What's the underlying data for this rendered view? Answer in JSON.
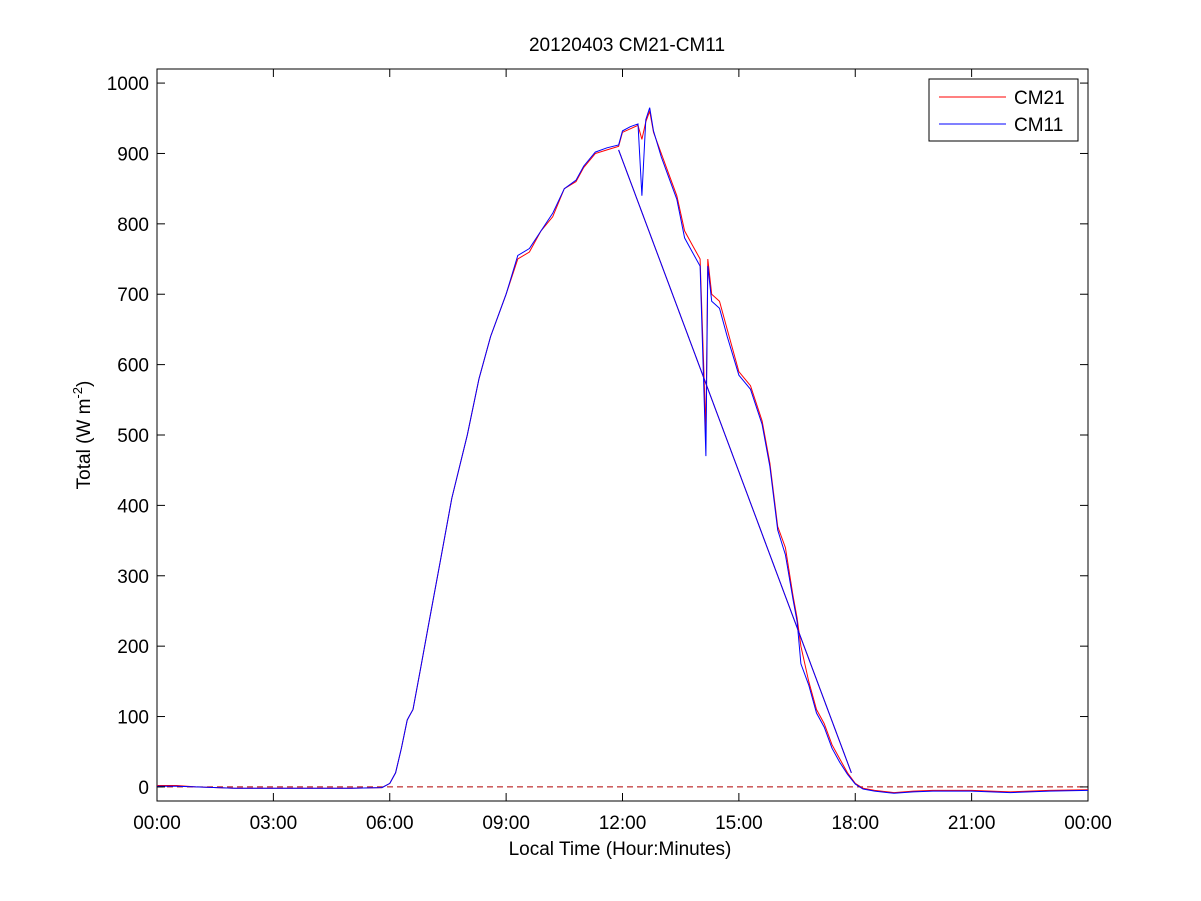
{
  "chart_data": {
    "type": "line",
    "title": "20120403 CM21-CM11",
    "xlabel": "Local Time (Hour:Minutes)",
    "ylabel": "Total (W m^-2)",
    "ylabel_parts": {
      "main": "Total (W m",
      "sup": "-2",
      "close": ")"
    },
    "xlim": [
      0,
      24
    ],
    "ylim": [
      -20,
      1020
    ],
    "x_ticks": [
      0,
      3,
      6,
      9,
      12,
      15,
      18,
      21,
      24
    ],
    "x_tick_labels": [
      "00:00",
      "03:00",
      "06:00",
      "09:00",
      "12:00",
      "15:00",
      "18:00",
      "21:00",
      "00:00"
    ],
    "y_ticks": [
      0,
      100,
      200,
      300,
      400,
      500,
      600,
      700,
      800,
      900,
      1000
    ],
    "y_tick_labels": [
      "0",
      "100",
      "200",
      "300",
      "400",
      "500",
      "600",
      "700",
      "800",
      "900",
      "1000"
    ],
    "grid": false,
    "legend_position": "top-right",
    "reference_line": {
      "y": 0,
      "style": "dashed",
      "color": "#b00000"
    },
    "series": [
      {
        "name": "CM21",
        "color": "#ff0000",
        "x": [
          0,
          0.5,
          1,
          2,
          3,
          4,
          5,
          5.8,
          6,
          6.15,
          6.3,
          6.45,
          6.5,
          6.6,
          6.8,
          7,
          7.3,
          7.6,
          8,
          8.3,
          8.6,
          9,
          9.3,
          9.6,
          9.9,
          10.2,
          10.5,
          10.8,
          11,
          11.3,
          11.6,
          11.9,
          12,
          12.2,
          12.4,
          12.5,
          12.6,
          12.7,
          12.8,
          13,
          13.2,
          13.4,
          13.6,
          13.8,
          14,
          14.15,
          14.2,
          14.3,
          14.5,
          14.7,
          15,
          15.3,
          15.6,
          15.8,
          16,
          16.2,
          16.4,
          16.5,
          16.6,
          16.8,
          17,
          17.2,
          17.4,
          17.6,
          17.8,
          18,
          18.2,
          18.5,
          19,
          19.5,
          20,
          21,
          22,
          23,
          24
        ],
        "y": [
          2,
          2,
          0,
          -2,
          -2,
          -2,
          -2,
          -1,
          5,
          20,
          55,
          95,
          100,
          110,
          170,
          230,
          320,
          410,
          500,
          580,
          640,
          700,
          750,
          760,
          790,
          810,
          850,
          860,
          880,
          900,
          905,
          910,
          930,
          935,
          940,
          920,
          945,
          960,
          930,
          900,
          870,
          840,
          790,
          770,
          750,
          505,
          750,
          700,
          690,
          650,
          590,
          570,
          520,
          460,
          370,
          340,
          270,
          240,
          200,
          150,
          110,
          90,
          60,
          40,
          20,
          5,
          -2,
          -5,
          -8,
          -6,
          -5,
          -5,
          -7,
          -5,
          -4
        ]
      },
      {
        "name": "CM11",
        "color": "#0000ff",
        "x": [
          0,
          0.5,
          1,
          2,
          3,
          4,
          5,
          5.8,
          6,
          6.15,
          6.3,
          6.45,
          6.5,
          6.6,
          6.8,
          7,
          7.3,
          7.6,
          8,
          8.3,
          8.6,
          9,
          9.3,
          9.6,
          9.9,
          10.2,
          10.5,
          10.8,
          11,
          11.3,
          11.6,
          11.9,
          12,
          12.2,
          12.4,
          12.5,
          12.6,
          12.7,
          12.8,
          13,
          13.2,
          13.4,
          13.6,
          13.8,
          14,
          14.15,
          14.2,
          14.3,
          14.5,
          14.7,
          15,
          15.3,
          15.6,
          15.8,
          16,
          16.2,
          16.4,
          16.5,
          16.6,
          16.8,
          17,
          17.2,
          17.4,
          17.6,
          17.8,
          18,
          18.2,
          18.5,
          19,
          19.5,
          20,
          21,
          22,
          23,
          24
        ],
        "y": [
          1,
          1,
          0,
          -2,
          -2,
          -2,
          -2,
          -1,
          5,
          20,
          55,
          95,
          100,
          110,
          170,
          230,
          320,
          410,
          500,
          580,
          640,
          700,
          755,
          765,
          790,
          815,
          850,
          862,
          882,
          902,
          908,
          912,
          932,
          938,
          942,
          840,
          948,
          965,
          932,
          895,
          865,
          835,
          780,
          760,
          740,
          470,
          740,
          690,
          680,
          640,
          585,
          565,
          515,
          455,
          365,
          330,
          265,
          235,
          175,
          145,
          105,
          85,
          55,
          35,
          18,
          4,
          -3,
          -6,
          -9,
          -7,
          -6,
          -6,
          -8,
          -6,
          -5
        ]
      }
    ],
    "diagonal_segment": {
      "x": [
        11.9,
        17.9
      ],
      "y": [
        905,
        20
      ]
    }
  }
}
